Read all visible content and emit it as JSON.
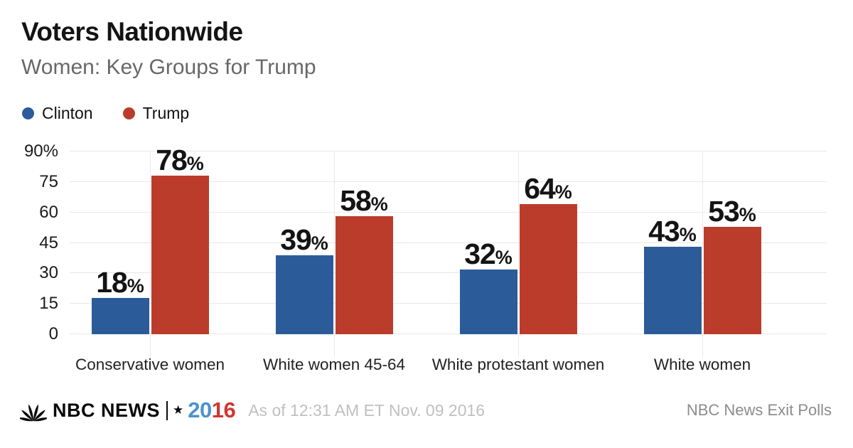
{
  "header": {
    "title": "Voters Nationwide",
    "subtitle": "Women: Key Groups for Trump"
  },
  "legend": [
    {
      "label": "Clinton",
      "color": "#2b5c99"
    },
    {
      "label": "Trump",
      "color": "#bc3c2c"
    }
  ],
  "chart_data": {
    "type": "bar",
    "title": "Voters Nationwide — Women: Key Groups for Trump",
    "categories": [
      "Conservative women",
      "White women 45-64",
      "White protestant women",
      "White women"
    ],
    "series": [
      {
        "name": "Clinton",
        "color": "#2b5c99",
        "values": [
          18,
          39,
          32,
          43
        ]
      },
      {
        "name": "Trump",
        "color": "#bc3c2c",
        "values": [
          78,
          58,
          64,
          53
        ]
      }
    ],
    "value_suffix": "%",
    "ylim": [
      0,
      90
    ],
    "yticks": [
      0,
      15,
      30,
      45,
      60,
      75,
      90
    ],
    "ytick_labels": [
      "0",
      "15",
      "30",
      "45",
      "60",
      "75",
      "90%"
    ],
    "grid": true,
    "legend_position": "top-left",
    "gridline_color": "#e8e8e8"
  },
  "footer": {
    "brand": "NBC NEWS",
    "star": "★",
    "year_blue": "20",
    "year_red": "16",
    "year_blue_color": "#4b93cd",
    "year_red_color": "#d13630",
    "timestamp": "As of 12:31 AM ET Nov. 09 2016",
    "source": "NBC News Exit Polls"
  }
}
